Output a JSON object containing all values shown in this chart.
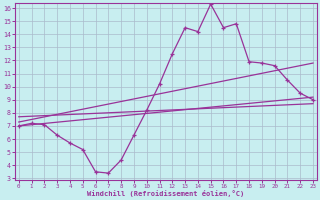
{
  "xlabel": "Windchill (Refroidissement éolien,°C)",
  "bg_color": "#c8eef0",
  "line_color": "#993399",
  "grid_color": "#aabbcc",
  "y_main": [
    7.0,
    7.2,
    7.1,
    6.3,
    5.7,
    5.2,
    3.5,
    3.4,
    4.4,
    6.3,
    8.2,
    10.2,
    12.5,
    14.5,
    14.2,
    16.3,
    14.5,
    14.8,
    11.9,
    11.8,
    11.6,
    10.5,
    9.5,
    9.0
  ],
  "reg1": [
    7.0,
    9.2
  ],
  "reg2": [
    7.3,
    11.8
  ],
  "reg3": [
    7.7,
    8.7
  ],
  "xlim": [
    0,
    23
  ],
  "ylim": [
    3,
    16
  ],
  "yticks": [
    3,
    4,
    5,
    6,
    7,
    8,
    9,
    10,
    11,
    12,
    13,
    14,
    15,
    16
  ],
  "xticks": [
    0,
    1,
    2,
    3,
    4,
    5,
    6,
    7,
    8,
    9,
    10,
    11,
    12,
    13,
    14,
    15,
    16,
    17,
    18,
    19,
    20,
    21,
    22,
    23
  ]
}
